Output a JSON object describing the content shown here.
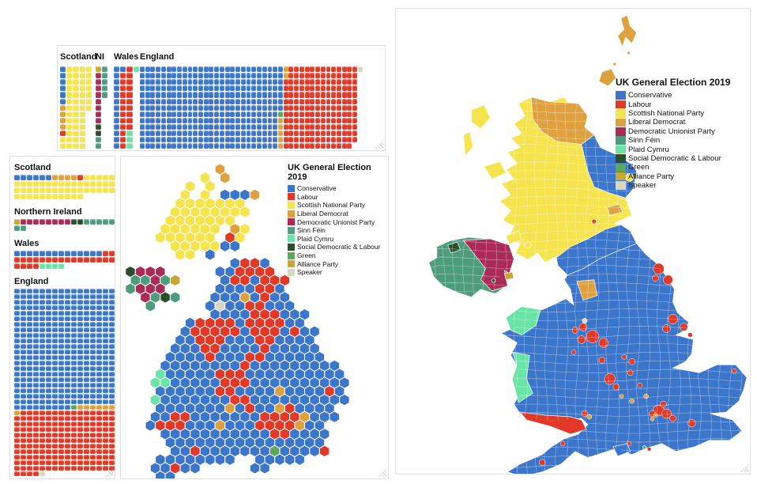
{
  "page": {
    "background": "#ffffff"
  },
  "panels": {
    "top_waffle": {
      "name": "uk-seats-by-region-horizontal-waffle"
    },
    "left_waffle": {
      "name": "uk-seats-by-region-vertical-waffle"
    },
    "hex_map": {
      "legend_title": "UK General Election 2019"
    },
    "geo_map": {
      "legend_title": "UK General Election 2019"
    }
  },
  "parties": [
    {
      "id": "C",
      "name": "Conservative",
      "color": "#3c76cb",
      "seats": 365
    },
    {
      "id": "L",
      "name": "Labour",
      "color": "#e13827",
      "seats": 202
    },
    {
      "id": "S",
      "name": "Scottish National Party",
      "color": "#f6e44e",
      "seats": 48
    },
    {
      "id": "D",
      "name": "Liberal Democrat",
      "color": "#dfa13d",
      "seats": 11
    },
    {
      "id": "U",
      "name": "Democratic Unionist Party",
      "color": "#aa2a58",
      "seats": 8
    },
    {
      "id": "F",
      "name": "Sinn Féin",
      "color": "#4d9d7d",
      "seats": 7
    },
    {
      "id": "P",
      "name": "Plaid Cymru",
      "color": "#68e5a5",
      "seats": 4
    },
    {
      "id": "X",
      "name": "Social Democratic & Labour",
      "color": "#2a4f2c",
      "seats": 2
    },
    {
      "id": "G",
      "name": "Green",
      "color": "#5da65b",
      "seats": 1
    },
    {
      "id": "A",
      "name": "Alliance Party",
      "color": "#c9a636",
      "seats": 1
    },
    {
      "id": "K",
      "name": "Speaker",
      "color": "#d9d6c3",
      "seats": 1
    }
  ],
  "chart_data": [
    {
      "id": "top_waffle",
      "type": "waffle",
      "orientation": "column-major",
      "rows": 13,
      "regions": [
        {
          "label": "Scotland",
          "total": 59,
          "runs": [
            [
              "C",
              6
            ],
            [
              "D",
              4
            ],
            [
              "L",
              1
            ],
            [
              "S",
              48
            ]
          ]
        },
        {
          "label": "NI",
          "total": 18,
          "runs": [
            [
              "A",
              1
            ],
            [
              "U",
              8
            ],
            [
              "X",
              2
            ],
            [
              "F",
              7
            ]
          ]
        },
        {
          "label": "Wales",
          "total": 40,
          "runs": [
            [
              "C",
              14
            ],
            [
              "L",
              22
            ],
            [
              "P",
              4
            ]
          ]
        },
        {
          "label": "England",
          "total": 533,
          "runs": [
            [
              "C",
              345
            ],
            [
              "G",
              1
            ],
            [
              "D",
              7
            ],
            [
              "L",
              179
            ]
          ],
          "speaker_extra_column": true
        }
      ]
    },
    {
      "id": "left_waffle",
      "type": "waffle",
      "orientation": "row-major",
      "cols": 16,
      "regions": [
        {
          "label": "Scotland",
          "total": 59,
          "runs": [
            [
              "C",
              6
            ],
            [
              "D",
              4
            ],
            [
              "L",
              1
            ],
            [
              "S",
              48
            ]
          ]
        },
        {
          "label": "Northern Ireland",
          "total": 18,
          "runs": [
            [
              "A",
              1
            ],
            [
              "U",
              8
            ],
            [
              "X",
              2
            ],
            [
              "F",
              7
            ]
          ]
        },
        {
          "label": "Wales",
          "total": 40,
          "runs": [
            [
              "C",
              14
            ],
            [
              "L",
              22
            ],
            [
              "P",
              4
            ]
          ]
        },
        {
          "label": "England",
          "total": 533,
          "runs": [
            [
              "C",
              345
            ],
            [
              "G",
              1
            ],
            [
              "D",
              7
            ],
            [
              "L",
              179
            ],
            [
              "K",
              1
            ]
          ]
        }
      ]
    },
    {
      "id": "hex_cartogram",
      "type": "hexmap",
      "title": "UK General Election 2019",
      "legend_position": "top-right",
      "grid": [
        ".........D...............",
        ".......S.D...............",
        "......S.S................",
        ".....S.S.CCCD............",
        ".....SSSSSSS.............",
        "....SSSSSSSS.............",
        "....SSSSSSS..............",
        "...SSSSSS.DS.............",
        "...SSSSSS.LS.............",
        "....SSSSSCC..............",
        ".....SS.C................",
        "..........CLLC...........",
        "XUUU.....CCLLLL..........",
        "FFUFA....CLLCLLL.........",
        "FUUU.....CCCCLLC.........",
        ".UFXF...CCCDCLCC.........",
        "..F.....CKCCLLCCC........",
        "........CCCCLLLCCC.......",
        "......CLLLLCLLLLCC.......",
        ".....CLLLLLCLLLCLCC......",
        ".....CCLLLCCCLLCCCC......",
        "....CCCLLCCCCLCCCCC......",
        "....CCCCLCCCLLCCCCCC.....",
        "...CCCCCCCCLCCCCCCCCC....",
        "...PCCCCCLLLCCCCCCCCCC...",
        "..PPCCCCCLLLCCCCCCCCCC...",
        "...CCCCCCLLCCCCDCCCCLC...",
        "..PCCCCCCCLLCCCCCCCCCC...",
        "...CCCCCCCDCLCCDLCCCC....",
        "..CCLLCCCCCCCLLLLDCCC....",
        "..CLLLCCCDCCCLLLLDCC.....",
        "...CCCCCCCCCCCLLCCCC.....",
        "....CCCCCCCCCCCCCCCC.....",
        "....CCLCCCCCCCGCCCCL.....",
        "...CCCCCCCC..CCCCC.......",
        "..CCLCC.....CC...........",
        "...CC...................."
      ]
    },
    {
      "id": "choropleth",
      "type": "map",
      "title": "UK General Election 2019",
      "legend_position": "top-right",
      "region_results": {
        "Scotland": {
          "Scottish National Party": 48,
          "Conservative": 6,
          "Liberal Democrat": 4,
          "Labour": 1
        },
        "Northern Ireland": {
          "Democratic Unionist Party": 8,
          "Sinn Féin": 7,
          "Social Democratic & Labour": 2,
          "Alliance Party": 1
        },
        "Wales": {
          "Labour": 22,
          "Conservative": 14,
          "Plaid Cymru": 4
        },
        "England": {
          "Conservative": 345,
          "Labour": 179,
          "Liberal Democrat": 7,
          "Green": 1,
          "Speaker": 1
        }
      }
    }
  ]
}
